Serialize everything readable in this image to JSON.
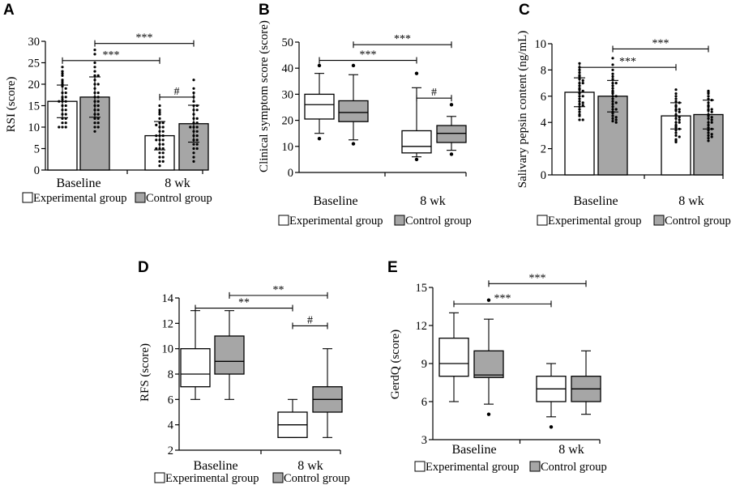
{
  "legend": {
    "experimental": "Experimental group",
    "control": "Control group"
  },
  "colors": {
    "experimental": "#ffffff",
    "control": "#a6a6a6",
    "stroke": "#000000"
  },
  "chart_data": [
    {
      "panel": "A",
      "type": "bar",
      "ylabel": "RSI (score)",
      "ylim": [
        0,
        30
      ],
      "yticks": [
        0,
        5,
        10,
        15,
        20,
        25,
        30
      ],
      "categories": [
        "Baseline",
        "8 wk"
      ],
      "series": [
        {
          "name": "Experimental group",
          "values": [
            16.0,
            8.0
          ],
          "sd": [
            3.8,
            3.3
          ],
          "points": [
            [
              24,
              23,
              22.5,
              22,
              21,
              20.5,
              20,
              19.5,
              19,
              18,
              18,
              17,
              17,
              16.5,
              16,
              16,
              16,
              15,
              15,
              14,
              14,
              13,
              13,
              12,
              12,
              11,
              11,
              10,
              10,
              10
            ],
            [
              15,
              14,
              13.5,
              13,
              12,
              11,
              11,
              10.5,
              10,
              10,
              9,
              9,
              8,
              8,
              8,
              7,
              7,
              7,
              6,
              6,
              5,
              5,
              5,
              4,
              4,
              3,
              3,
              2,
              2,
              1
            ]
          ]
        },
        {
          "name": "Control group",
          "values": [
            17.0,
            10.8
          ],
          "sd": [
            4.7,
            4.3
          ],
          "points": [
            [
              28,
              27,
              25,
              24,
              23,
              22,
              22,
              21,
              20,
              20,
              19,
              18,
              18,
              17,
              17,
              16,
              16,
              15,
              15,
              14,
              14,
              13,
              13,
              12,
              12,
              11,
              11,
              10,
              10,
              9
            ],
            [
              21,
              19,
              18,
              17,
              16,
              15,
              15,
              14,
              14,
              13,
              12,
              12,
              11,
              11,
              10,
              10,
              10,
              9,
              9,
              8,
              8,
              7,
              7,
              6,
              6,
              5,
              5,
              4,
              3,
              2
            ]
          ]
        }
      ],
      "brackets": [
        {
          "label": "***",
          "from": [
            0,
            0
          ],
          "to": [
            1,
            0
          ],
          "y": 25.5,
          "tier": 0
        },
        {
          "label": "***",
          "from": [
            0,
            1
          ],
          "to": [
            1,
            1
          ],
          "y": 29.5,
          "tier": 1
        },
        {
          "label": "#",
          "from": [
            1,
            0
          ],
          "to": [
            1,
            1
          ],
          "y": 17,
          "tier": 0
        }
      ]
    },
    {
      "panel": "B",
      "type": "box",
      "ylabel": "Clinical symptom score (score)",
      "ylim": [
        0,
        50
      ],
      "yticks": [
        0,
        10,
        20,
        30,
        40,
        50
      ],
      "categories": [
        "Baseline",
        "8 wk"
      ],
      "series": [
        {
          "name": "Experimental group",
          "boxes": [
            {
              "min": 15,
              "q1": 20.5,
              "median": 26,
              "q3": 30,
              "max": 38,
              "outliers": [
                41,
                13
              ]
            },
            {
              "min": 6,
              "q1": 7.5,
              "median": 10,
              "q3": 16,
              "max": 32.5,
              "outliers": [
                38,
                5
              ]
            }
          ]
        },
        {
          "name": "Control group",
          "boxes": [
            {
              "min": 12.5,
              "q1": 19.5,
              "median": 23,
              "q3": 27.5,
              "max": 37.5,
              "outliers": [
                41,
                11
              ]
            },
            {
              "min": 8.5,
              "q1": 11.5,
              "median": 15,
              "q3": 18,
              "max": 21.5,
              "outliers": [
                26,
                7
              ]
            }
          ]
        }
      ],
      "brackets": [
        {
          "label": "***",
          "from": [
            0,
            0
          ],
          "to": [
            1,
            0
          ],
          "y": 43,
          "tier": 0
        },
        {
          "label": "***",
          "from": [
            0,
            1
          ],
          "to": [
            1,
            1
          ],
          "y": 49,
          "tier": 1
        },
        {
          "label": "#",
          "from": [
            1,
            0
          ],
          "to": [
            1,
            1
          ],
          "y": 28.5,
          "tier": 0
        }
      ]
    },
    {
      "panel": "C",
      "type": "bar",
      "ylabel": "Salivary pepsin content (ng/mL)",
      "ylim": [
        0,
        10
      ],
      "yticks": [
        0,
        2,
        4,
        6,
        8,
        10
      ],
      "categories": [
        "Baseline",
        "8 wk"
      ],
      "series": [
        {
          "name": "Experimental group",
          "values": [
            6.3,
            4.5
          ],
          "sd": [
            1.1,
            1.0
          ],
          "points": [
            [
              8.5,
              8.2,
              8,
              7.8,
              7.6,
              7.5,
              7.3,
              7.2,
              7,
              7,
              6.8,
              6.6,
              6.5,
              6.4,
              6.3,
              6.2,
              6,
              6,
              5.8,
              5.6,
              5.5,
              5.4,
              5.3,
              5.2,
              5,
              4.8,
              4.6,
              4.5,
              4.2,
              4.2
            ],
            [
              6.5,
              6.2,
              6,
              5.8,
              5.6,
              5.5,
              5.3,
              5.2,
              5,
              5,
              4.9,
              4.8,
              4.6,
              4.5,
              4.4,
              4.3,
              4.2,
              4,
              4,
              3.8,
              3.7,
              3.6,
              3.5,
              3.4,
              3.2,
              3,
              2.9,
              2.7,
              2.6,
              2.5
            ]
          ]
        },
        {
          "name": "Control group",
          "values": [
            6.0,
            4.6
          ],
          "sd": [
            1.2,
            1.1
          ],
          "points": [
            [
              8.9,
              8.4,
              8,
              7.7,
              7.5,
              7.3,
              7,
              7,
              6.8,
              6.6,
              6.4,
              6.3,
              6.2,
              6,
              6,
              5.8,
              5.6,
              5.5,
              5.4,
              5.2,
              5,
              5,
              4.8,
              4.7,
              4.5,
              4.4,
              4.3,
              4.2,
              4.1,
              4
            ],
            [
              6.4,
              6.3,
              6.2,
              6,
              5.8,
              5.7,
              5.5,
              5.3,
              5.2,
              5,
              5,
              4.9,
              4.8,
              4.6,
              4.5,
              4.4,
              4.3,
              4.2,
              4,
              4,
              3.8,
              3.6,
              3.5,
              3.4,
              3.2,
              3.1,
              3,
              2.9,
              2.8,
              2.6
            ]
          ]
        }
      ],
      "brackets": [
        {
          "label": "***",
          "from": [
            0,
            0
          ],
          "to": [
            1,
            0
          ],
          "y": 8.2,
          "tier": 0
        },
        {
          "label": "***",
          "from": [
            0,
            1
          ],
          "to": [
            1,
            1
          ],
          "y": 9.6,
          "tier": 1
        }
      ]
    },
    {
      "panel": "D",
      "type": "box",
      "ylabel": "RFS (score)",
      "ylim": [
        2,
        14
      ],
      "yticks": [
        2,
        4,
        6,
        8,
        10,
        12,
        14
      ],
      "categories": [
        "Baseline",
        "8 wk"
      ],
      "series": [
        {
          "name": "Experimental group",
          "boxes": [
            {
              "min": 6,
              "q1": 7,
              "median": 8,
              "q3": 10,
              "max": 13,
              "outliers": []
            },
            {
              "min": 3,
              "q1": 3,
              "median": 4,
              "q3": 5,
              "max": 6,
              "outliers": []
            }
          ]
        },
        {
          "name": "Control group",
          "boxes": [
            {
              "min": 6,
              "q1": 8,
              "median": 9,
              "q3": 11,
              "max": 13,
              "outliers": []
            },
            {
              "min": 3,
              "q1": 5,
              "median": 6,
              "q3": 7,
              "max": 10,
              "outliers": []
            }
          ]
        }
      ],
      "brackets": [
        {
          "label": "**",
          "from": [
            0,
            0
          ],
          "to": [
            1,
            0
          ],
          "y": 13.2,
          "tier": 0
        },
        {
          "label": "**",
          "from": [
            0,
            1
          ],
          "to": [
            1,
            1
          ],
          "y": 14.2,
          "tier": 1
        },
        {
          "label": "#",
          "from": [
            1,
            0
          ],
          "to": [
            1,
            1
          ],
          "y": 11.8,
          "tier": 0
        }
      ]
    },
    {
      "panel": "E",
      "type": "box",
      "ylabel": "GerdQ (score)",
      "ylim": [
        3,
        15
      ],
      "yticks": [
        3,
        6,
        9,
        12,
        15
      ],
      "categories": [
        "Baseline",
        "8 wk"
      ],
      "series": [
        {
          "name": "Experimental group",
          "boxes": [
            {
              "min": 6,
              "q1": 8,
              "median": 9,
              "q3": 11,
              "max": 13,
              "outliers": []
            },
            {
              "min": 4.8,
              "q1": 6,
              "median": 7,
              "q3": 8,
              "max": 9,
              "outliers": [
                4
              ]
            }
          ]
        },
        {
          "name": "Control group",
          "boxes": [
            {
              "min": 5.8,
              "q1": 7.9,
              "median": 8.1,
              "q3": 10,
              "max": 12.5,
              "outliers": [
                14,
                5
              ]
            },
            {
              "min": 5,
              "q1": 6,
              "median": 7,
              "q3": 8,
              "max": 10,
              "outliers": []
            }
          ]
        }
      ],
      "brackets": [
        {
          "label": "***",
          "from": [
            0,
            0
          ],
          "to": [
            1,
            0
          ],
          "y": 13.7,
          "tier": 0
        },
        {
          "label": "***",
          "from": [
            0,
            1
          ],
          "to": [
            1,
            1
          ],
          "y": 15.3,
          "tier": 1
        }
      ]
    }
  ]
}
